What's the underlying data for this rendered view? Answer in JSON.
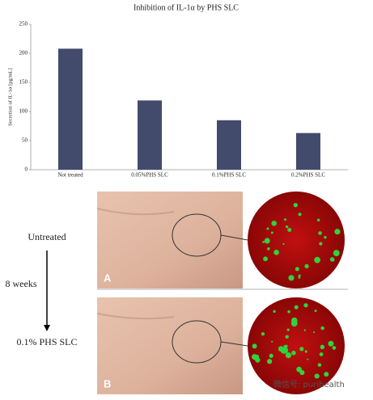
{
  "chart_data": {
    "type": "bar",
    "title": "Inhibition of IL-1α by PHS SLC",
    "y_label": "Secretion of IL-1α [pg/mL]",
    "categories": [
      "Not treated",
      "0.05%PHS SLC",
      "0.1%PHS SLC",
      "0.2%PHS SLC"
    ],
    "values": [
      208,
      119,
      85,
      63
    ],
    "color": "#434b6c",
    "ylim": [
      0,
      250
    ],
    "yticks": [
      0,
      50,
      100,
      150,
      200,
      250
    ],
    "grid": false
  },
  "panel": {
    "before": "Untreated",
    "duration": "8 weeks",
    "after": "0.1% PHS SLC",
    "photo_a": "A",
    "photo_b": "B",
    "watermark": "微信号: purihealth"
  }
}
